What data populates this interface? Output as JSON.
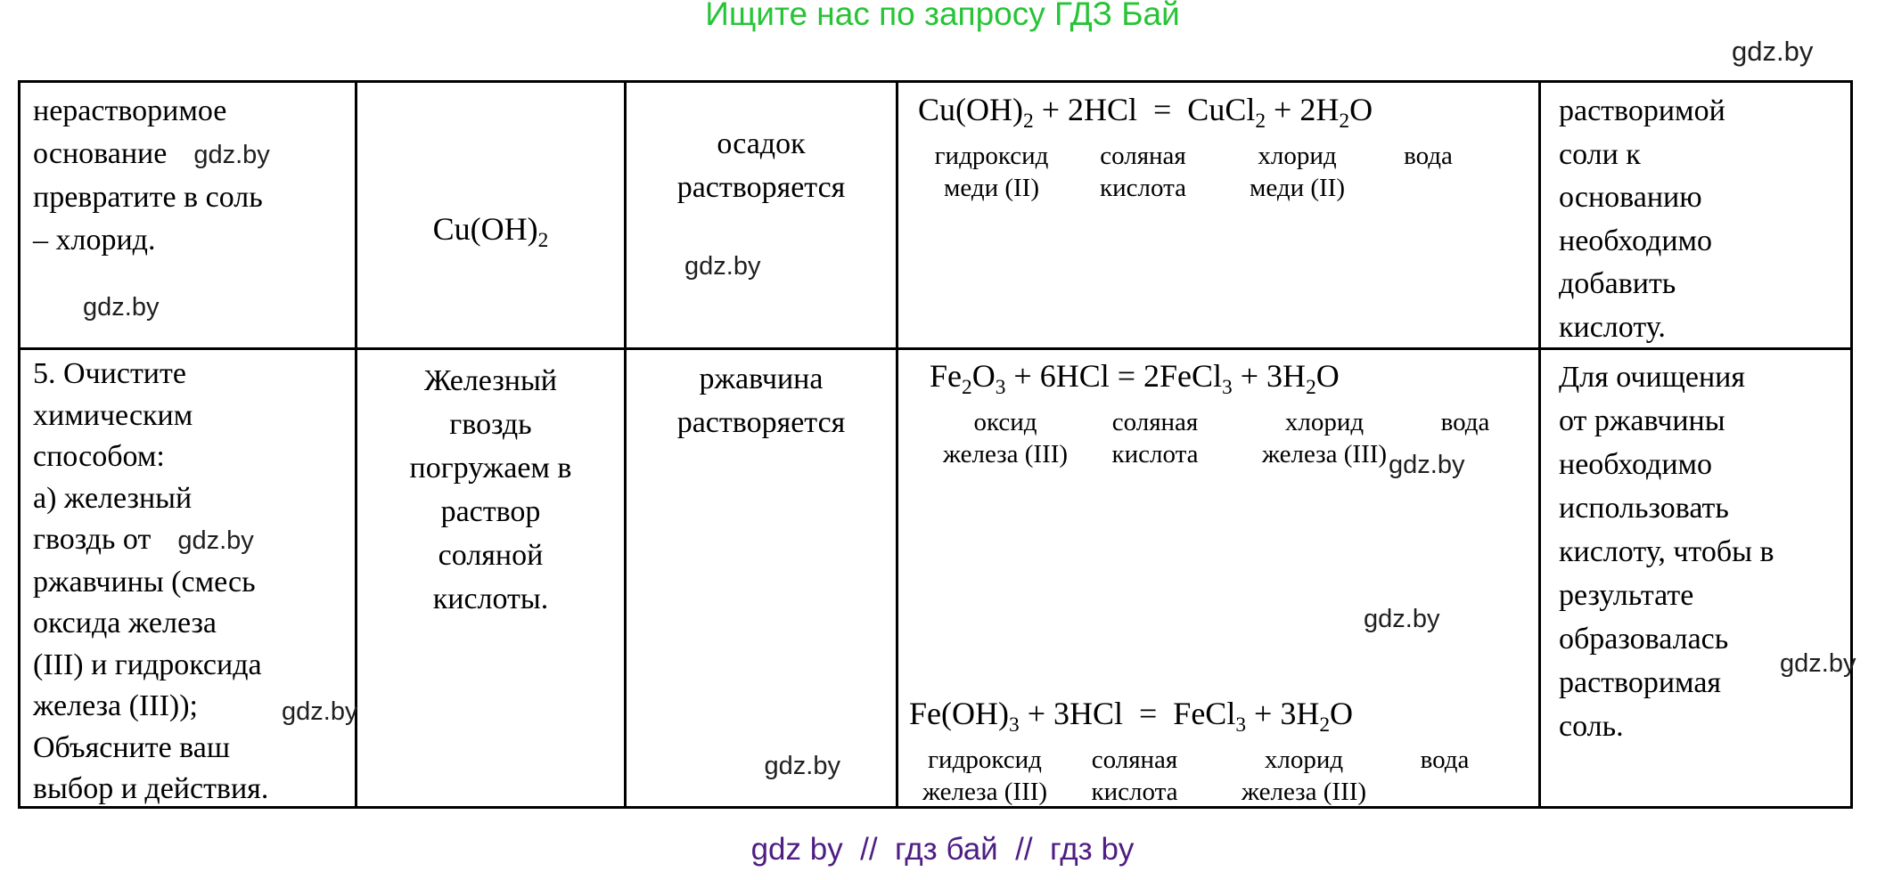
{
  "page": {
    "banner": "Ищите нас по запросу ГДЗ Бай",
    "watermark": "gdz.by",
    "footer": "gdz by  //  гдз бай  //  гдз by",
    "colors": {
      "banner_green": "#27c437",
      "footer_purple": "#4e1e82",
      "watermark": "#1f1f1f",
      "text": "#000000"
    }
  },
  "table": {
    "row1": {
      "task": {
        "lines": [
          "нерастворимое",
          "основание",
          "превратите в соль",
          "– хлорид."
        ]
      },
      "substance": {
        "formula": "Cu(OH)_2_"
      },
      "observation": {
        "lines": [
          "осадок",
          "растворяется"
        ]
      },
      "equation": {
        "formula": "Cu(OH)_2_ + 2HCl  =  CuCl_2_ + 2H_2_O",
        "labels": [
          {
            "top": "гидроксид",
            "bottom": "меди (II)"
          },
          {
            "top": "соляная",
            "bottom": "кислота"
          },
          {
            "top": "хлорид",
            "bottom": "меди (II)"
          },
          {
            "top": "вода",
            "bottom": ""
          }
        ]
      },
      "conclusion": {
        "lines": [
          "растворимой",
          "соли к",
          "основанию",
          "необходимо",
          "добавить",
          "кислоту."
        ]
      }
    },
    "row2": {
      "task": {
        "lines": [
          "5. Очистите",
          "химическим",
          "способом:",
          "а) железный",
          "гвоздь от",
          "ржавчины (смесь",
          "оксида железа",
          "(III) и гидроксида",
          "железа (III));",
          "Объясните ваш",
          "выбор и действия."
        ]
      },
      "substance": {
        "lines": [
          "Железный",
          "гвоздь",
          "погружаем в",
          "раствор",
          "соляной",
          "кислоты."
        ]
      },
      "observation": {
        "lines": [
          "ржавчина",
          "растворяется"
        ]
      },
      "equation1": {
        "formula": "Fe_2_O_3_ + 6HCl = 2FeCl_3_ + 3H_2_O",
        "labels": [
          {
            "top": "оксид",
            "bottom": "железа (III)"
          },
          {
            "top": "соляная",
            "bottom": "кислота"
          },
          {
            "top": "хлорид",
            "bottom": "железа (III)"
          },
          {
            "top": "вода",
            "bottom": ""
          }
        ]
      },
      "equation2": {
        "formula": "Fe(OH)_3_ + 3HCl  =  FeCl_3_ + 3H_2_O",
        "labels": [
          {
            "top": "гидроксид",
            "bottom": "железа (III)"
          },
          {
            "top": "соляная",
            "bottom": "кислота"
          },
          {
            "top": "хлорид",
            "bottom": "железа (III)"
          },
          {
            "top": "вода",
            "bottom": ""
          }
        ]
      },
      "conclusion": {
        "lines": [
          "Для очищения",
          "от ржавчины",
          "необходимо",
          "использовать",
          "кислоту, чтобы в",
          "результате",
          "образовалась",
          "растворимая",
          "соль."
        ]
      }
    }
  }
}
